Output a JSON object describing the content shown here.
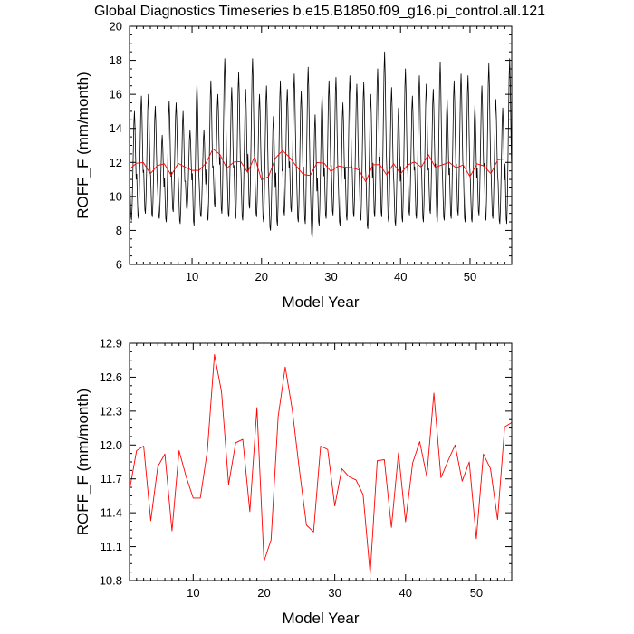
{
  "colors": {
    "monthly": "#000000",
    "annual": "#ff0000",
    "frame": "#000000"
  },
  "chart_data": [
    {
      "type": "line",
      "title": "Global Diagnostics Timeseries b.e15.B1850.f09_g16.pi_control.all.121",
      "xlabel": "Model Year",
      "ylabel": "ROFF_F (mm/month)",
      "xlim": [
        1,
        56
      ],
      "ylim": [
        6,
        20
      ],
      "xticks": [
        10,
        20,
        30,
        40,
        50
      ],
      "yticks": [
        6,
        8,
        10,
        12,
        14,
        16,
        18,
        20
      ],
      "xtick_labels": [
        "10",
        "20",
        "30",
        "40",
        "50"
      ],
      "ytick_labels": [
        "6",
        "8",
        "10",
        "12",
        "14",
        "16",
        "18",
        "20"
      ],
      "series": [
        {
          "name": "monthly",
          "color": "#000000",
          "seasonal_cycle": [
            11.2,
            10.0,
            8.9,
            8.7,
            9.6,
            11.2,
            13.0,
            14.8,
            15.6,
            14.6,
            12.8,
            11.3
          ],
          "annual_peaks": [
            15.0,
            15.9,
            16.0,
            15.3,
            13.6,
            15.6,
            15.5,
            15.0,
            13.9,
            16.7,
            13.9,
            16.8,
            16.0,
            18.1,
            16.4,
            17.3,
            16.3,
            18.1,
            16.0,
            16.5,
            14.7,
            16.8,
            16.3,
            17.2,
            16.2,
            17.6,
            14.8,
            16.0,
            16.8,
            17.0,
            15.5,
            17.1,
            16.6,
            16.7,
            16.0,
            17.5,
            18.5,
            16.4,
            15.2,
            17.5,
            15.9,
            17.1,
            16.6,
            16.3,
            17.9,
            15.7,
            16.8,
            17.2,
            17.1,
            15.4,
            16.5,
            17.8,
            15.7,
            15.2,
            18.1
          ],
          "annual_troughs": [
            8.6,
            8.7,
            9.0,
            8.8,
            8.7,
            8.5,
            9.1,
            8.4,
            9.2,
            8.3,
            8.8,
            8.6,
            9.4,
            9.0,
            8.8,
            8.7,
            8.6,
            9.3,
            8.8,
            8.5,
            8.0,
            8.3,
            8.9,
            9.1,
            8.5,
            8.4,
            7.6,
            8.3,
            8.7,
            8.9,
            8.3,
            8.6,
            8.8,
            8.6,
            8.1,
            8.8,
            8.8,
            8.5,
            8.3,
            8.5,
            8.9,
            8.7,
            8.5,
            9.0,
            8.5,
            8.6,
            8.7,
            8.9,
            8.5,
            8.5,
            8.9,
            8.6,
            8.7,
            8.4,
            8.4
          ]
        },
        {
          "name": "annual",
          "color": "#ff0000",
          "x": [
            1,
            2,
            3,
            4,
            5,
            6,
            7,
            8,
            9,
            10,
            11,
            12,
            13,
            14,
            15,
            16,
            17,
            18,
            19,
            20,
            21,
            22,
            23,
            24,
            25,
            26,
            27,
            28,
            29,
            30,
            31,
            32,
            33,
            34,
            35,
            36,
            37,
            38,
            39,
            40,
            41,
            42,
            43,
            44,
            45,
            46,
            47,
            48,
            49,
            50,
            51,
            52,
            53,
            54,
            55
          ],
          "values": [
            11.6,
            11.95,
            11.99,
            11.33,
            11.81,
            11.92,
            11.24,
            11.95,
            11.72,
            11.53,
            11.53,
            11.95,
            12.8,
            12.47,
            11.65,
            12.02,
            12.05,
            11.41,
            12.33,
            10.97,
            11.16,
            12.25,
            12.69,
            12.31,
            11.78,
            11.29,
            11.23,
            11.99,
            11.96,
            11.46,
            11.79,
            11.72,
            11.69,
            11.56,
            10.86,
            11.86,
            11.87,
            11.27,
            11.93,
            11.32,
            11.84,
            12.03,
            11.72,
            12.46,
            11.71,
            11.86,
            12.0,
            11.68,
            11.85,
            11.17,
            11.92,
            11.79,
            11.34,
            12.16,
            12.2
          ]
        }
      ]
    },
    {
      "type": "line",
      "title": "",
      "xlabel": "Model Year",
      "ylabel": "ROFF_F (mm/month)",
      "xlim": [
        1,
        55
      ],
      "ylim": [
        10.8,
        12.9
      ],
      "xticks": [
        10,
        20,
        30,
        40,
        50
      ],
      "yticks": [
        10.8,
        11.1,
        11.4,
        11.7,
        12.0,
        12.3,
        12.6,
        12.9
      ],
      "xtick_labels": [
        "10",
        "20",
        "30",
        "40",
        "50"
      ],
      "ytick_labels": [
        "10.8",
        "11.1",
        "11.4",
        "11.7",
        "12.0",
        "12.3",
        "12.6",
        "12.9"
      ],
      "series": [
        {
          "name": "annual",
          "color": "#ff0000",
          "x": [
            1,
            2,
            3,
            4,
            5,
            6,
            7,
            8,
            9,
            10,
            11,
            12,
            13,
            14,
            15,
            16,
            17,
            18,
            19,
            20,
            21,
            22,
            23,
            24,
            25,
            26,
            27,
            28,
            29,
            30,
            31,
            32,
            33,
            34,
            35,
            36,
            37,
            38,
            39,
            40,
            41,
            42,
            43,
            44,
            45,
            46,
            47,
            48,
            49,
            50,
            51,
            52,
            53,
            54,
            55
          ],
          "values": [
            11.6,
            11.95,
            11.99,
            11.33,
            11.81,
            11.92,
            11.24,
            11.95,
            11.72,
            11.53,
            11.53,
            11.95,
            12.8,
            12.47,
            11.65,
            12.02,
            12.05,
            11.41,
            12.33,
            10.97,
            11.16,
            12.25,
            12.69,
            12.31,
            11.78,
            11.29,
            11.23,
            11.99,
            11.96,
            11.46,
            11.79,
            11.72,
            11.69,
            11.56,
            10.86,
            11.86,
            11.87,
            11.27,
            11.93,
            11.32,
            11.84,
            12.03,
            11.72,
            12.46,
            11.71,
            11.86,
            12.0,
            11.68,
            11.85,
            11.17,
            11.92,
            11.79,
            11.34,
            12.16,
            12.2
          ]
        }
      ]
    }
  ]
}
